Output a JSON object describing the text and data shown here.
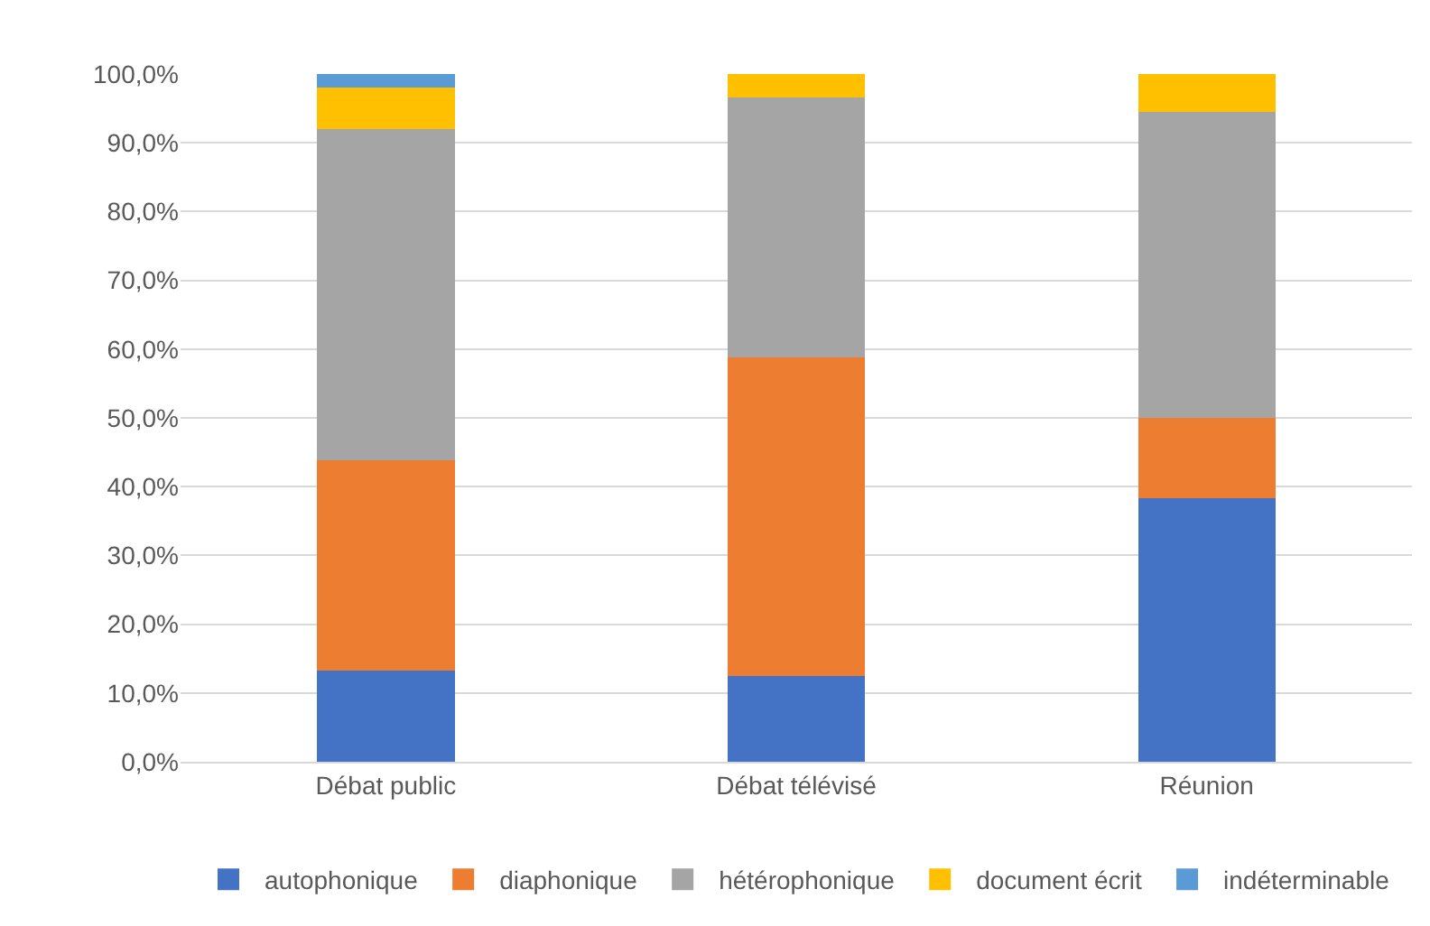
{
  "chart_data": {
    "type": "bar",
    "stacked": true,
    "categories": [
      "Débat public",
      "Débat télévisé",
      "Réunion"
    ],
    "series": [
      {
        "name": "autophonique",
        "color": "#4472c4",
        "values": [
          13.3,
          12.5,
          38.3
        ]
      },
      {
        "name": "diaphonique",
        "color": "#ed7d31",
        "values": [
          30.5,
          46.3,
          11.7
        ]
      },
      {
        "name": "hétérophonique",
        "color": "#a5a5a5",
        "values": [
          48.2,
          37.8,
          44.5
        ]
      },
      {
        "name": "document écrit",
        "color": "#ffc000",
        "values": [
          6,
          3.4,
          5.5
        ]
      },
      {
        "name": "indéterminable",
        "color": "#5b9bd5",
        "values": [
          2,
          0,
          0
        ]
      }
    ],
    "ylim": [
      0,
      100
    ],
    "yticks": [
      {
        "value": 0,
        "label": "0,0%"
      },
      {
        "value": 10,
        "label": "10,0%"
      },
      {
        "value": 20,
        "label": "20,0%"
      },
      {
        "value": 30,
        "label": "30,0%"
      },
      {
        "value": 40,
        "label": "40,0%"
      },
      {
        "value": 50,
        "label": "50,0%"
      },
      {
        "value": 60,
        "label": "60,0%"
      },
      {
        "value": 70,
        "label": "70,0%"
      },
      {
        "value": 80,
        "label": "80,0%"
      },
      {
        "value": 90,
        "label": "90,0%"
      },
      {
        "value": 100,
        "label": "100,0%"
      }
    ],
    "grid": "y",
    "legend": "bottom"
  }
}
